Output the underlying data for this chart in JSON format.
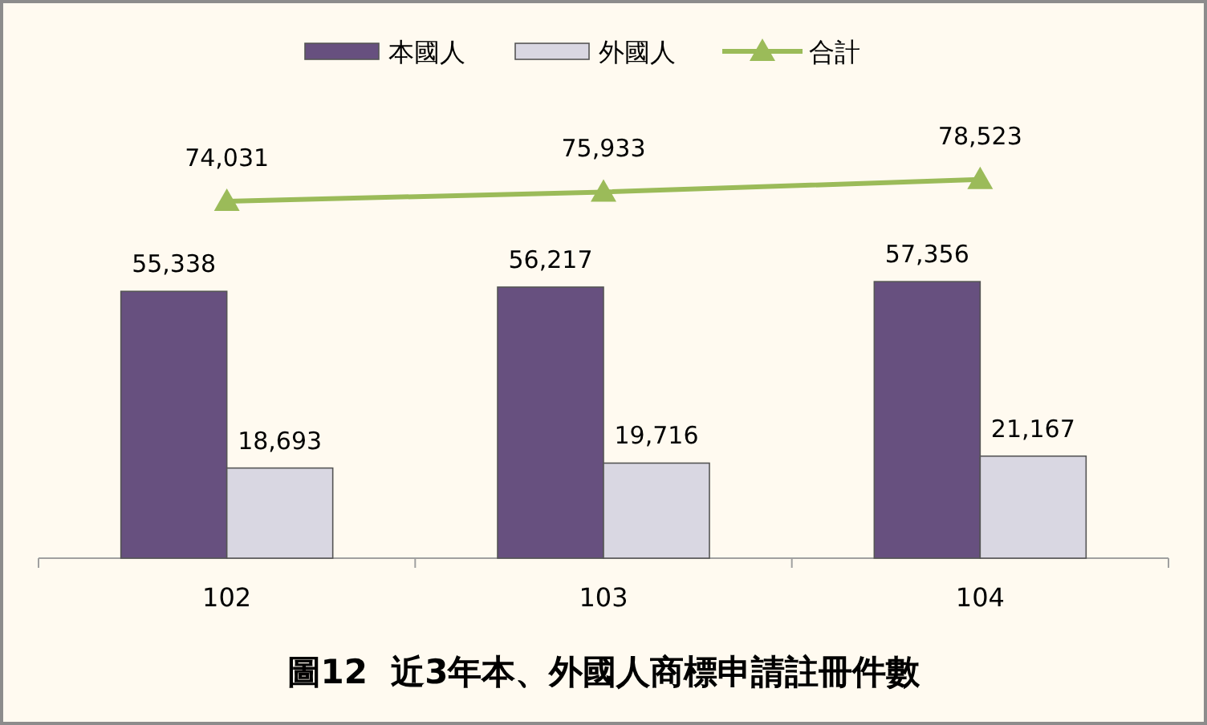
{
  "chart_data": {
    "type": "bar",
    "title": "圖12  近3年本、外國人商標申請註冊件數",
    "categories": [
      "102",
      "103",
      "104"
    ],
    "series": [
      {
        "name": "本國人",
        "color": "#67507f",
        "values": [
          55338,
          56217,
          57356
        ],
        "value_labels": [
          "55,338",
          "56,217",
          "57,356"
        ]
      },
      {
        "name": "外國人",
        "color": "#d9d7e2",
        "values": [
          18693,
          19716,
          21167
        ],
        "value_labels": [
          "18,693",
          "19,716",
          "21,167"
        ]
      },
      {
        "name": "合計",
        "type": "line",
        "color": "#9bbb59",
        "values": [
          74031,
          75933,
          78523
        ],
        "value_labels": [
          "74,031",
          "75,933",
          "78,523"
        ]
      }
    ],
    "marker": "triangle",
    "legend": "top"
  }
}
